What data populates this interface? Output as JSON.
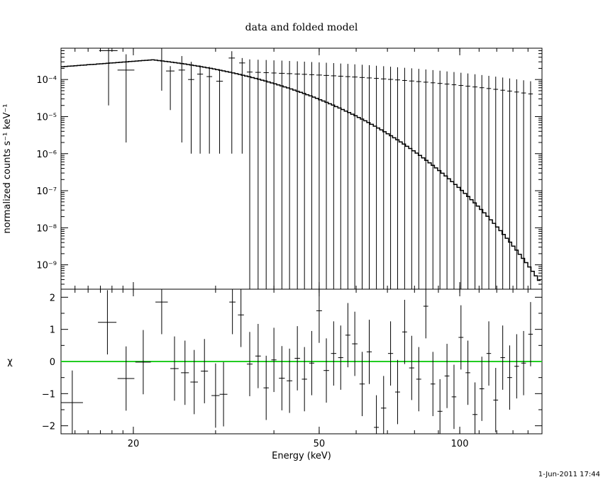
{
  "chart_data": [
    {
      "type": "line",
      "title": "data and folded model",
      "xlabel": "",
      "ylabel": "normalized counts s⁻¹ keV⁻¹",
      "xscale": "log",
      "yscale": "log",
      "xlim": [
        14,
        150
      ],
      "ylim": [
        2.2e-10,
        0.0007
      ],
      "y_tick_labels": [
        "10⁻⁹",
        "10⁻⁸",
        "10⁻⁷",
        "10⁻⁶",
        "10⁻⁵",
        "10⁻⁴"
      ],
      "y_tick_values": [
        1e-09,
        1e-08,
        1e-07,
        1e-06,
        1e-05,
        0.0001
      ],
      "series": [
        {
          "style": "crosses with error bars",
          "points": [
            {
              "x": 17.7,
              "xerr": 0.8,
              "y": 0.0006,
              "yerr_lo": 0.00058,
              "yerr_hi": 0.0001
            },
            {
              "x": 19.3,
              "xerr": 0.8,
              "y": 0.00018,
              "yerr_lo": 0.000178,
              "yerr_hi": 0.0003
            },
            {
              "x": 23.0,
              "xerr": 0.5,
              "y": 0.0007,
              "yerr_lo": 0.00065,
              "yerr_hi": 5e-05
            },
            {
              "x": 24.0,
              "xerr": 0.5,
              "y": 0.00017,
              "yerr_lo": 0.000155,
              "yerr_hi": 6e-05
            },
            {
              "x": 25.4,
              "xerr": 0.4,
              "y": 0.00018,
              "yerr_lo": 0.000178,
              "yerr_hi": 0.00025
            },
            {
              "x": 26.6,
              "xerr": 0.4,
              "y": 0.0001,
              "yerr_lo": 9.9e-05,
              "yerr_hi": 0.0002
            },
            {
              "x": 27.8,
              "xerr": 0.4,
              "y": 0.00014,
              "yerr_lo": 0.000139,
              "yerr_hi": 0.0001
            },
            {
              "x": 29.1,
              "xerr": 0.4,
              "y": 0.00012,
              "yerr_lo": 0.000119,
              "yerr_hi": 0.0001
            },
            {
              "x": 30.6,
              "xerr": 0.5,
              "y": 9e-05,
              "yerr_lo": 8.9e-05,
              "yerr_hi": 0.0001
            },
            {
              "x": 32.5,
              "xerr": 0.5,
              "y": 0.00038,
              "yerr_lo": 0.000379,
              "yerr_hi": 0.0002
            },
            {
              "x": 34.2,
              "xerr": 0.5,
              "y": 0.00028,
              "yerr_lo": 0.000279,
              "yerr_hi": 0.0001
            }
          ]
        },
        {
          "name": "",
          "style": "folded model step"
        }
      ]
    },
    {
      "type": "scatter",
      "title": "",
      "xlabel": "Energy (keV)",
      "ylabel": "χ",
      "xscale": "log",
      "xlim": [
        14,
        150
      ],
      "ylim": [
        -2.25,
        2.25
      ],
      "x_tick_labels": [
        "20",
        "50",
        "100"
      ],
      "x_tick_values": [
        20,
        50,
        100
      ],
      "y_tick_labels": [
        "−2",
        "−1",
        "0",
        "1",
        "2"
      ],
      "y_tick_values": [
        -2,
        -1,
        0,
        1,
        2
      ],
      "reference_line": {
        "y": 0,
        "color": "#22cc22"
      },
      "points": [
        {
          "x": 14.8,
          "xerr": 0.8,
          "y": -1.28
        },
        {
          "x": 17.6,
          "xerr": 0.8,
          "y": 1.22
        },
        {
          "x": 19.3,
          "xerr": 0.8,
          "y": -0.53
        },
        {
          "x": 21.0,
          "xerr": 0.8,
          "y": -0.02
        },
        {
          "x": 23.0,
          "xerr": 0.7,
          "y": 1.85
        },
        {
          "x": 24.5,
          "xerr": 0.5,
          "y": -0.22
        },
        {
          "x": 25.8,
          "xerr": 0.5,
          "y": -0.35
        },
        {
          "x": 27.0,
          "xerr": 0.5,
          "y": -0.64
        },
        {
          "x": 28.4,
          "xerr": 0.5,
          "y": -0.3
        },
        {
          "x": 30.0,
          "xerr": 0.6,
          "y": -1.06
        },
        {
          "x": 31.2,
          "xerr": 0.6,
          "y": -1.02
        },
        {
          "x": 32.6,
          "xerr": 0.5,
          "y": 1.85
        },
        {
          "x": 34.0,
          "xerr": 0.5,
          "y": 1.45
        },
        {
          "x": 35.5,
          "xerr": 0.5,
          "y": -0.08
        },
        {
          "x": 37.0,
          "xerr": 0.5,
          "y": 0.17
        },
        {
          "x": 38.5,
          "xerr": 0.5,
          "y": -0.82
        },
        {
          "x": 40.0,
          "xerr": 0.5,
          "y": 0.05
        },
        {
          "x": 41.6,
          "xerr": 0.6,
          "y": -0.52
        },
        {
          "x": 43.2,
          "xerr": 0.6,
          "y": -0.6
        },
        {
          "x": 44.9,
          "xerr": 0.6,
          "y": 0.1
        },
        {
          "x": 46.5,
          "xerr": 0.6,
          "y": -0.55
        },
        {
          "x": 48.2,
          "xerr": 0.6,
          "y": -0.05
        },
        {
          "x": 50.0,
          "xerr": 0.7,
          "y": 1.58
        },
        {
          "x": 51.8,
          "xerr": 0.7,
          "y": -0.28
        },
        {
          "x": 53.7,
          "xerr": 0.7,
          "y": 0.25
        },
        {
          "x": 55.6,
          "xerr": 0.7,
          "y": 0.12
        },
        {
          "x": 57.6,
          "xerr": 0.7,
          "y": 0.82
        },
        {
          "x": 59.6,
          "xerr": 0.8,
          "y": 0.55
        },
        {
          "x": 61.8,
          "xerr": 0.8,
          "y": -0.7
        },
        {
          "x": 64.0,
          "xerr": 0.8,
          "y": 0.3
        },
        {
          "x": 66.3,
          "xerr": 0.8,
          "y": -2.05
        },
        {
          "x": 68.7,
          "xerr": 0.9,
          "y": -1.45
        },
        {
          "x": 71.1,
          "xerr": 0.9,
          "y": 0.25
        },
        {
          "x": 73.6,
          "xerr": 0.9,
          "y": -0.95
        },
        {
          "x": 76.2,
          "xerr": 0.9,
          "y": 0.92
        },
        {
          "x": 78.9,
          "xerr": 1.0,
          "y": -0.2
        },
        {
          "x": 81.7,
          "xerr": 1.0,
          "y": -0.55
        },
        {
          "x": 84.6,
          "xerr": 1.0,
          "y": 1.72
        },
        {
          "x": 87.6,
          "xerr": 1.0,
          "y": -0.7
        },
        {
          "x": 90.7,
          "xerr": 1.1,
          "y": -1.55
        },
        {
          "x": 93.9,
          "xerr": 1.1,
          "y": -0.45
        },
        {
          "x": 97.2,
          "xerr": 1.1,
          "y": -1.1
        },
        {
          "x": 100.6,
          "xerr": 1.2,
          "y": 0.75
        },
        {
          "x": 104.1,
          "xerr": 1.2,
          "y": -0.35
        },
        {
          "x": 107.8,
          "xerr": 1.3,
          "y": -1.65
        },
        {
          "x": 111.5,
          "xerr": 1.3,
          "y": -0.85
        },
        {
          "x": 115.4,
          "xerr": 1.3,
          "y": 0.25
        },
        {
          "x": 119.4,
          "xerr": 1.4,
          "y": -1.2
        },
        {
          "x": 123.6,
          "xerr": 1.4,
          "y": 0.12
        },
        {
          "x": 127.9,
          "xerr": 1.5,
          "y": -0.5
        },
        {
          "x": 132.4,
          "xerr": 1.5,
          "y": -0.15
        },
        {
          "x": 137.0,
          "xerr": 1.6,
          "y": -0.05
        },
        {
          "x": 141.8,
          "xerr": 1.6,
          "y": 0.85
        }
      ]
    }
  ],
  "footer": {
    "timestamp": "1-Jun-2011 17:44"
  }
}
